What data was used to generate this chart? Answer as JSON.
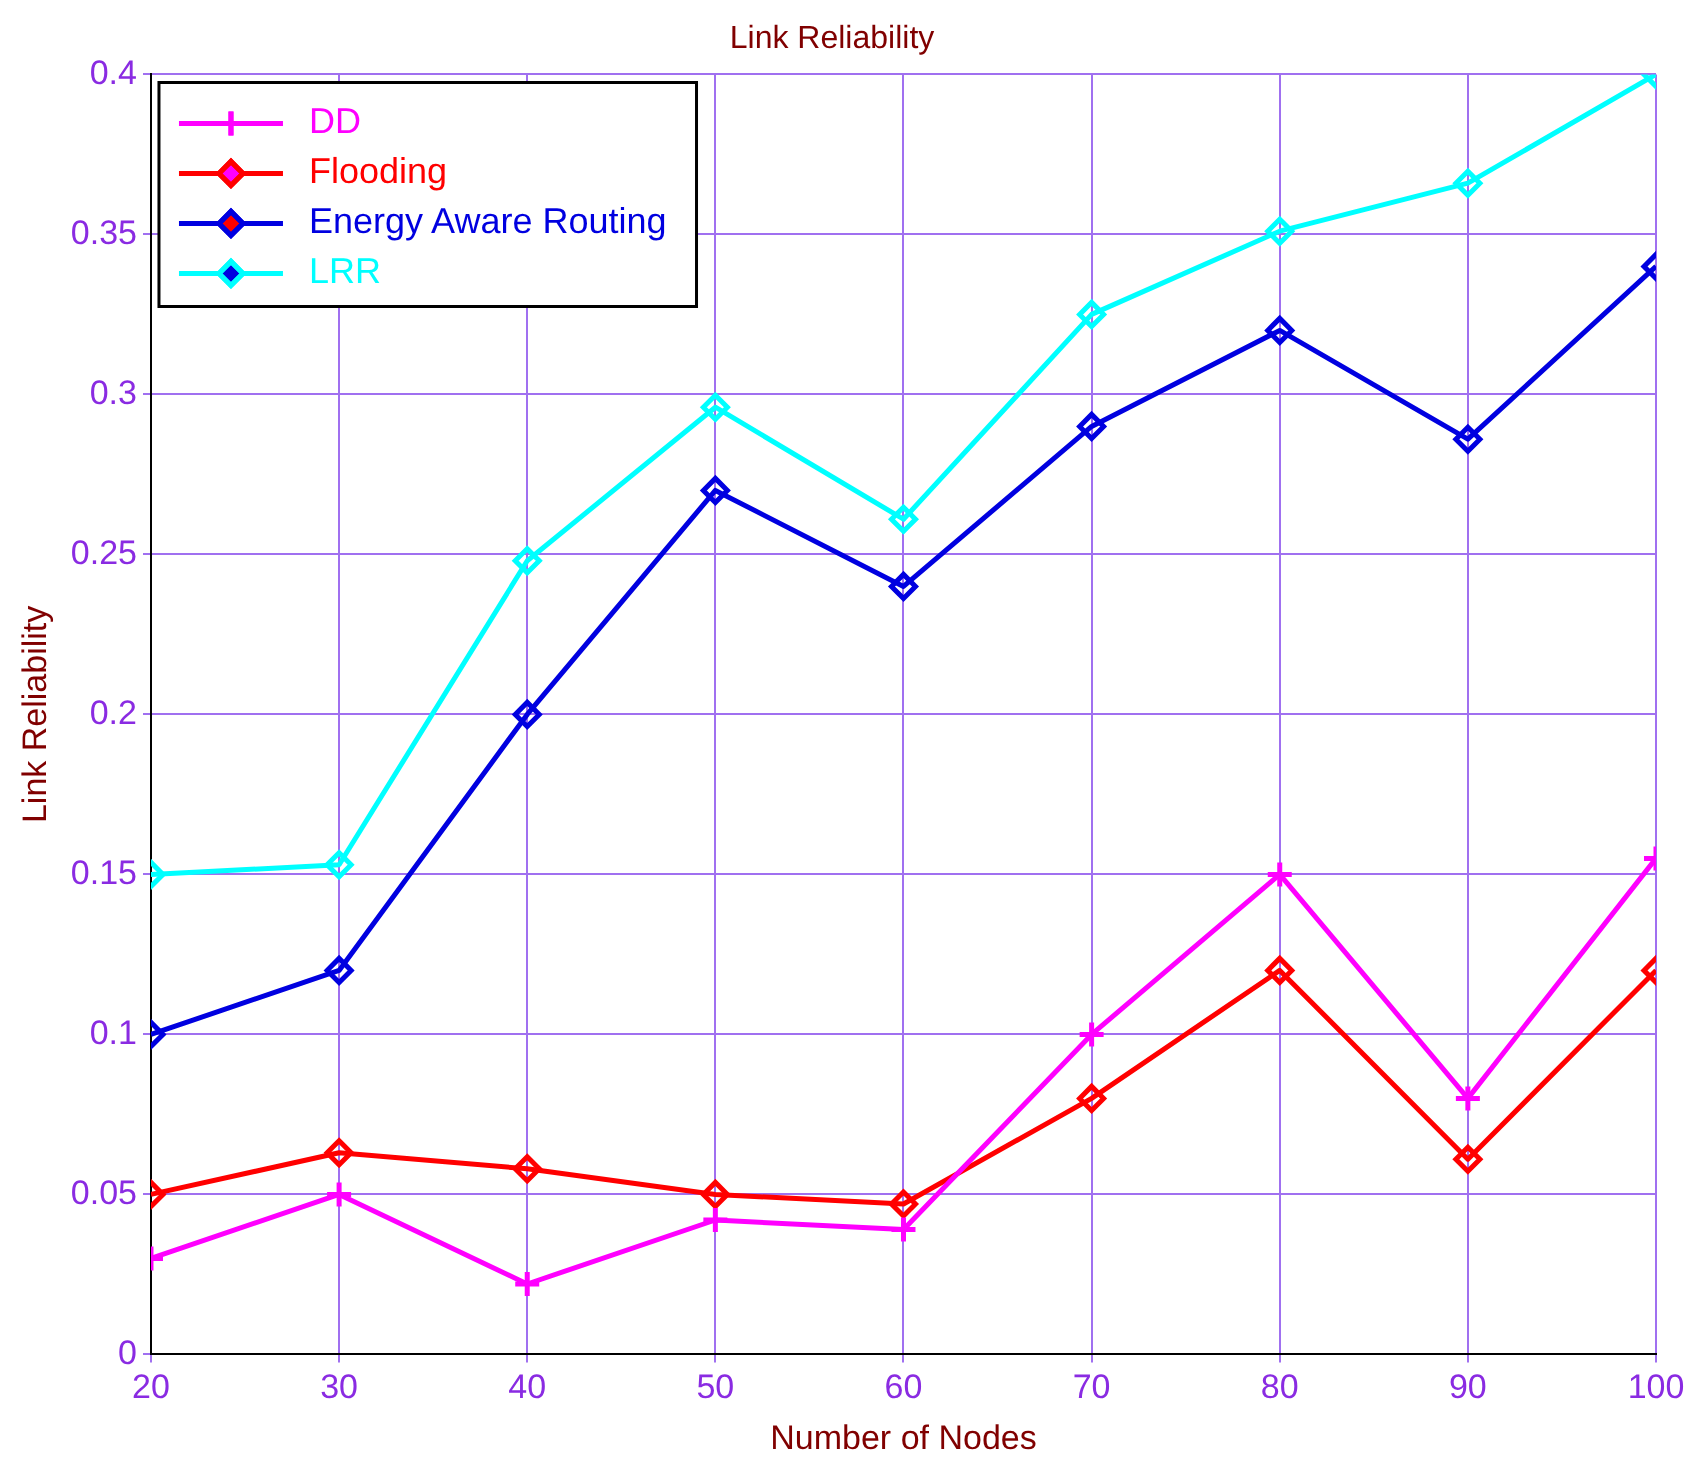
{
  "chart_data": {
    "type": "line",
    "title": "Link Reliability",
    "xlabel": "Number of Nodes",
    "ylabel": "Link Reliability",
    "x": [
      20,
      30,
      40,
      50,
      60,
      70,
      80,
      90,
      100
    ],
    "xlim": [
      20,
      100
    ],
    "xticks": [
      20,
      30,
      40,
      50,
      60,
      70,
      80,
      90,
      100
    ],
    "ylim": [
      0,
      0.4
    ],
    "yticks": [
      0,
      0.05,
      0.1,
      0.15,
      0.2,
      0.25,
      0.3,
      0.35,
      0.4
    ],
    "grid": true,
    "legend": "top left",
    "line_style": "solid",
    "series": [
      {
        "name": "DD",
        "color": "#ff00ff",
        "marker": "cross",
        "values": [
          0.03,
          0.05,
          0.022,
          0.042,
          0.039,
          0.1,
          0.15,
          0.08,
          0.155
        ]
      },
      {
        "name": "Flooding",
        "color": "#ff0000",
        "marker": "diamond",
        "values": [
          0.05,
          0.063,
          0.058,
          0.05,
          0.047,
          0.08,
          0.12,
          0.061,
          0.12
        ]
      },
      {
        "name": "Energy Aware Routing",
        "color": "#0000e0",
        "marker": "diamond",
        "values": [
          0.1,
          0.12,
          0.2,
          0.27,
          0.24,
          0.29,
          0.32,
          0.286,
          0.34
        ]
      },
      {
        "name": "LRR",
        "color": "#00ffff",
        "marker": "diamond",
        "values": [
          0.15,
          0.153,
          0.248,
          0.296,
          0.261,
          0.325,
          0.351,
          0.366,
          0.4
        ]
      }
    ]
  }
}
